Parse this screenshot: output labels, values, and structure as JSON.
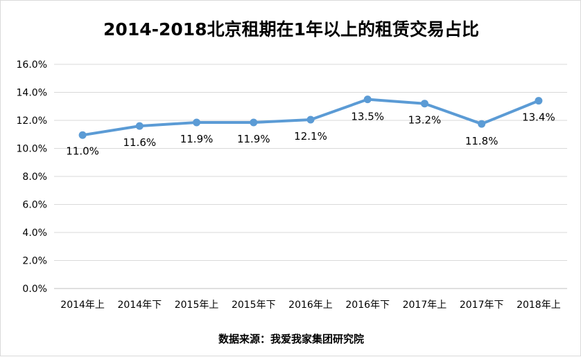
{
  "chart_data": {
    "type": "line",
    "title": "2014-2018北京租期在1年以上的租赁交易占比",
    "source": "数据来源：我爱我家集团研究院",
    "categories": [
      "2014年上",
      "2014年下",
      "2015年上",
      "2015年下",
      "2016年上",
      "2016年下",
      "2017年上",
      "2017年下",
      "2018年上"
    ],
    "series": [
      {
        "values": [
          10.95,
          11.6,
          11.85,
          11.85,
          12.05,
          13.5,
          13.2,
          11.75,
          13.4
        ],
        "labels": [
          "11.0%",
          "11.6%",
          "11.9%",
          "11.9%",
          "12.1%",
          "13.5%",
          "13.2%",
          "11.8%",
          "13.4%"
        ],
        "color": "#5b9bd5"
      }
    ],
    "yticks": [
      "0.0%",
      "2.0%",
      "4.0%",
      "6.0%",
      "8.0%",
      "10.0%",
      "12.0%",
      "14.0%",
      "16.0%"
    ],
    "ylim": [
      0,
      16
    ],
    "grid": true,
    "gridColor": "#d9d9d9"
  }
}
